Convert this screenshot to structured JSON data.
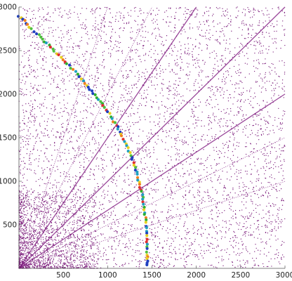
{
  "chart_data": {
    "type": "scatter",
    "title": "",
    "xlabel": "",
    "ylabel": "",
    "xlim": [
      0,
      3000
    ],
    "ylim": [
      0,
      3000
    ],
    "xticks": [
      "500",
      "1000",
      "1500",
      "2000",
      "2500",
      "3000"
    ],
    "yticks": [
      "500",
      "1000",
      "1500",
      "2000",
      "2500",
      "3000"
    ],
    "grid": false,
    "legend": "none",
    "colors": {
      "scatter": "#7a1a7a",
      "rays": "#8a2a8a",
      "arc_palette": [
        "#e8d020",
        "#50c040",
        "#e03030",
        "#2040c0",
        "#f08020",
        "#20a0c0",
        "#30b030"
      ]
    },
    "background_scatter": {
      "approx_point_count": 6000,
      "density": "uniform with increased density near origin"
    },
    "rays": [
      {
        "slope": 0.333
      },
      {
        "slope": 0.5
      },
      {
        "slope": 0.667
      },
      {
        "slope": 1.0
      },
      {
        "slope": 1.5
      },
      {
        "slope": 2.0
      },
      {
        "slope": 3.0
      }
    ],
    "arc_series": {
      "description": "colored points forming a curve",
      "points": [
        [
          0,
          2890
        ],
        [
          60,
          2840
        ],
        [
          120,
          2770
        ],
        [
          200,
          2700
        ],
        [
          270,
          2630
        ],
        [
          340,
          2560
        ],
        [
          400,
          2490
        ],
        [
          470,
          2420
        ],
        [
          540,
          2350
        ],
        [
          610,
          2280
        ],
        [
          680,
          2200
        ],
        [
          740,
          2130
        ],
        [
          800,
          2060
        ],
        [
          860,
          1990
        ],
        [
          920,
          1910
        ],
        [
          970,
          1840
        ],
        [
          1020,
          1770
        ],
        [
          1070,
          1690
        ],
        [
          1110,
          1620
        ],
        [
          1150,
          1540
        ],
        [
          1190,
          1460
        ],
        [
          1230,
          1380
        ],
        [
          1260,
          1300
        ],
        [
          1290,
          1220
        ],
        [
          1320,
          1130
        ],
        [
          1340,
          1050
        ],
        [
          1360,
          960
        ],
        [
          1380,
          880
        ],
        [
          1400,
          790
        ],
        [
          1410,
          700
        ],
        [
          1420,
          610
        ],
        [
          1430,
          520
        ],
        [
          1435,
          430
        ],
        [
          1440,
          340
        ],
        [
          1445,
          250
        ],
        [
          1448,
          160
        ],
        [
          1450,
          80
        ],
        [
          1450,
          20
        ]
      ]
    }
  }
}
